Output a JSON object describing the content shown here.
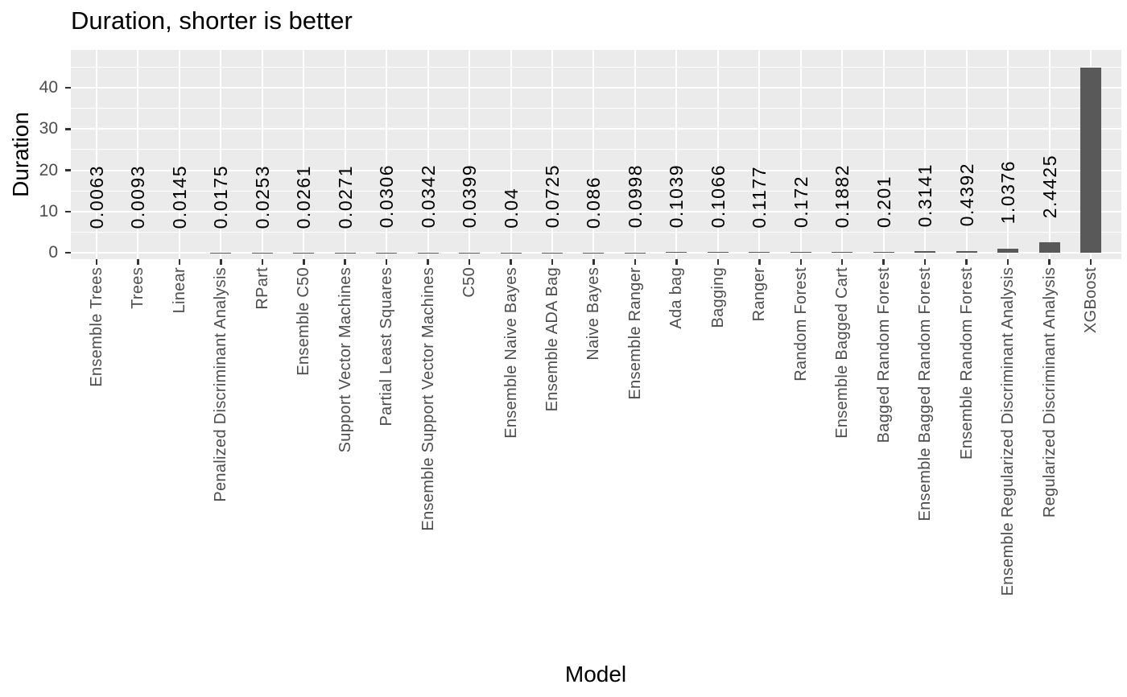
{
  "chart_data": {
    "type": "bar",
    "title": "Duration, shorter is better",
    "xlabel": "Model",
    "ylabel": "Duration",
    "categories": [
      "Ensemble Trees",
      "Trees",
      "Linear",
      "Penalized Discriminant Analysis",
      "RPart",
      "Ensemble C50",
      "Support Vector Machines",
      "Partial Least Squares",
      "Ensemble Support Vector Machines",
      "C50",
      "Ensemble Naive Bayes",
      "Ensemble ADA Bag",
      "Naive Bayes",
      "Ensemble Ranger",
      "Ada bag",
      "Bagging",
      "Ranger",
      "Random Forest",
      "Ensemble Bagged Cart",
      "Bagged Random Forest",
      "Ensemble Bagged Random Forest",
      "Ensemble Random Forest",
      "Ensemble Regularized Discriminant Analysis",
      "Regularized Discriminant Analysis",
      "XGBoost"
    ],
    "values": [
      0.0063,
      0.0093,
      0.0145,
      0.0175,
      0.0253,
      0.0261,
      0.0271,
      0.0306,
      0.0342,
      0.0399,
      0.04,
      0.0725,
      0.086,
      0.0998,
      0.1039,
      0.1066,
      0.1177,
      0.172,
      0.1882,
      0.201,
      0.3141,
      0.4392,
      1.0376,
      2.4425,
      44.9
    ],
    "bar_value_labels": [
      "0.0063",
      "0.0093",
      "0.0145",
      "0.0175",
      "0.0253",
      "0.0261",
      "0.0271",
      "0.0306",
      "0.0342",
      "0.0399",
      "0.04",
      "0.0725",
      "0.086",
      "0.0998",
      "0.1039",
      "0.1066",
      "0.1177",
      "0.172",
      "0.1882",
      "0.201",
      "0.3141",
      "0.4392",
      "1.0376",
      "2.4425",
      ""
    ],
    "y_major_ticks": [
      0,
      10,
      20,
      30,
      40
    ],
    "y_minor_gridlines": [
      5,
      15,
      25,
      35,
      45
    ],
    "ylim": [
      -1.5,
      49.2
    ],
    "grid": true,
    "legend": "none",
    "colors": {
      "panel_background": "#EBEBEB",
      "gridline": "#FFFFFF",
      "bar": "#595959",
      "axis_text": "#4D4D4D",
      "tick_mark": "#333333",
      "title_text": "#000000"
    }
  }
}
